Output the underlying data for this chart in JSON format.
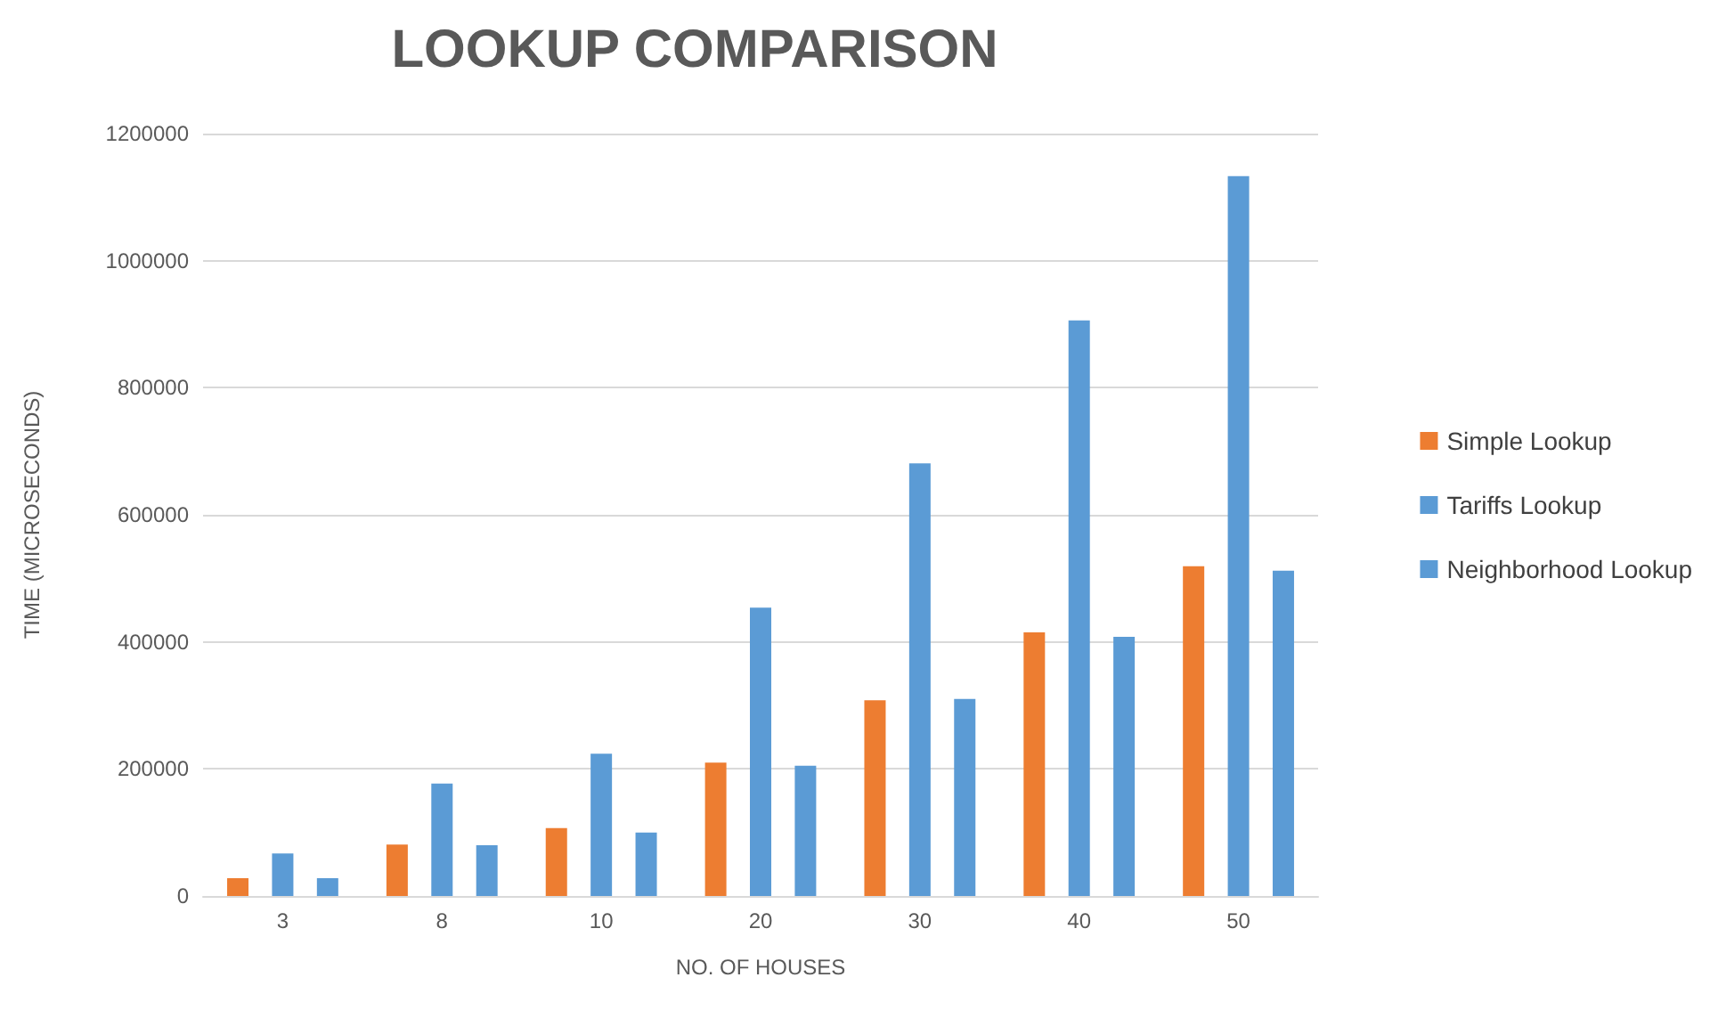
{
  "chart_data": {
    "type": "bar",
    "title": "LOOKUP COMPARISON",
    "xlabel": "NO. OF HOUSES",
    "ylabel": "TIME (MICROSECONDS)",
    "categories": [
      "3",
      "8",
      "10",
      "20",
      "30",
      "40",
      "50"
    ],
    "series": [
      {
        "name": "Simple Lookup",
        "color": "#ed7d31",
        "values": [
          28000,
          81000,
          107000,
          210000,
          308000,
          415000,
          519000
        ]
      },
      {
        "name": "Tariffs Lookup",
        "color": "#5b9bd5",
        "values": [
          67000,
          177000,
          224000,
          454000,
          681000,
          906000,
          1133000
        ]
      },
      {
        "name": "Neighborhood Lookup",
        "color": "#5b9bd5",
        "values": [
          28000,
          80000,
          100000,
          205000,
          310000,
          408000,
          512000
        ]
      }
    ],
    "ylim": [
      0,
      1200000
    ],
    "yticks": [
      0,
      200000,
      400000,
      600000,
      800000,
      1000000,
      1200000
    ],
    "grid": "y",
    "legend": "right"
  }
}
